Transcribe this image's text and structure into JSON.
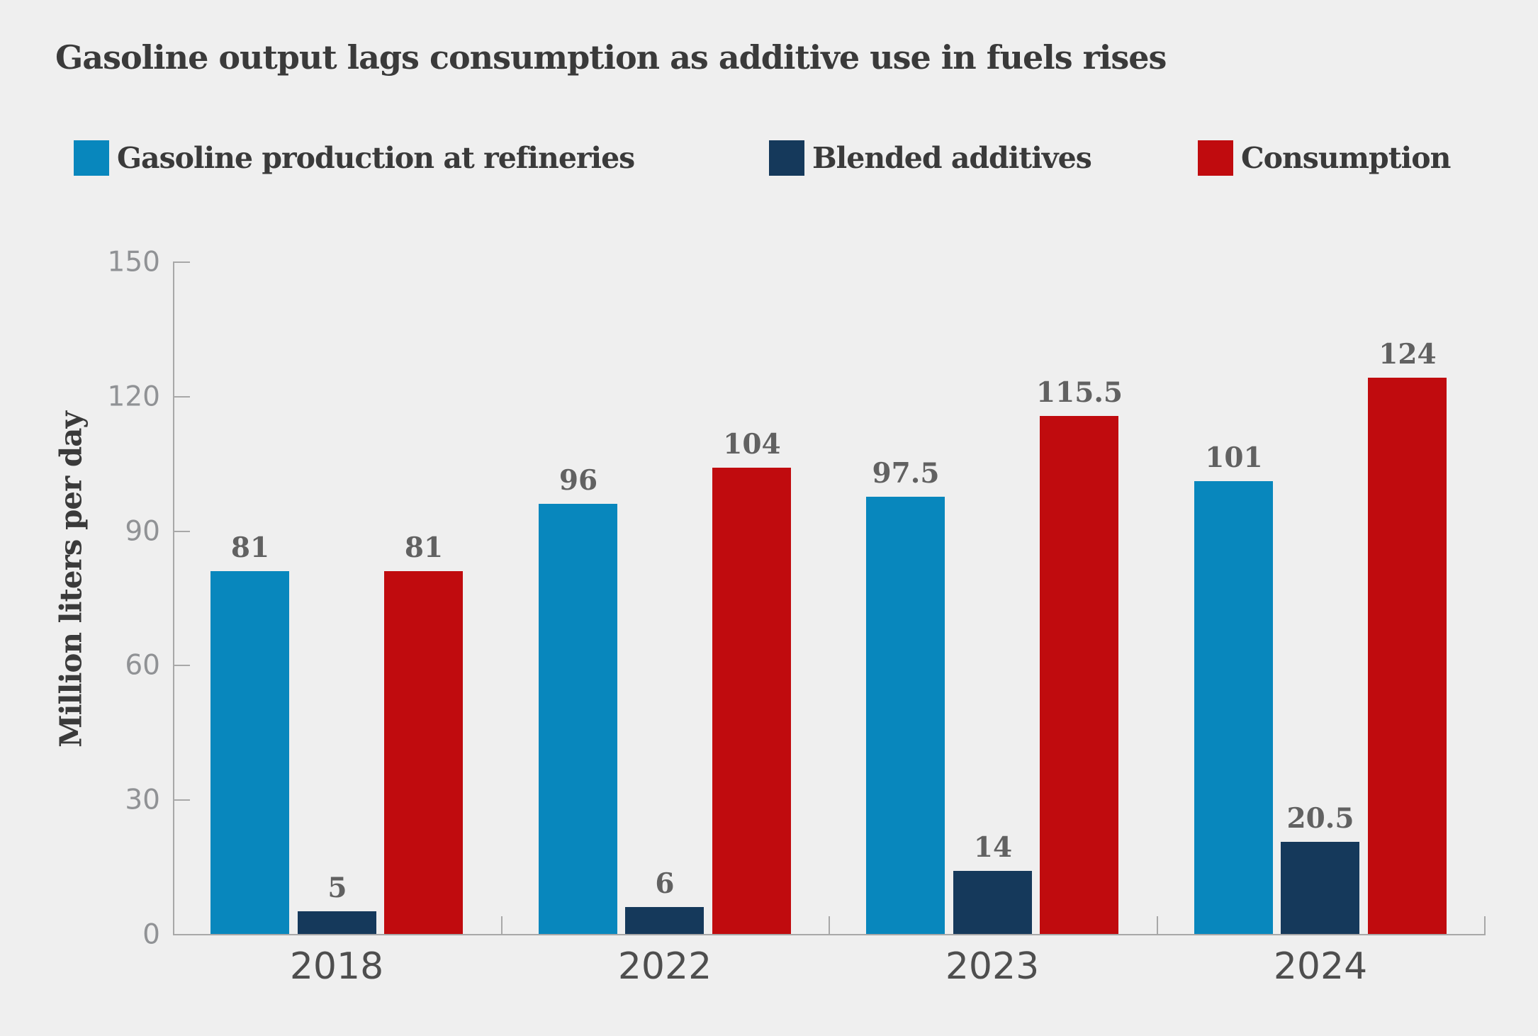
{
  "chart_data": {
    "type": "bar",
    "title": "Gasoline output lags consumption as additive use in fuels rises",
    "ylabel": "Million liters per day",
    "xlabel": "",
    "categories": [
      "2018",
      "2022",
      "2023",
      "2024"
    ],
    "series": [
      {
        "key": "production",
        "name": "Gasoline production at refineries",
        "color": "#0887bd",
        "values": [
          81,
          96,
          97.5,
          101
        ]
      },
      {
        "key": "additives",
        "name": "Blended additives",
        "color": "#15395b",
        "values": [
          5,
          6,
          14,
          20.5
        ]
      },
      {
        "key": "consumption",
        "name": "Consumption",
        "color": "#c00b0e",
        "values": [
          81,
          104,
          115.5,
          124
        ]
      }
    ],
    "ylim": [
      0,
      150
    ],
    "yticks": [
      0,
      30,
      60,
      90,
      120,
      150
    ],
    "grid": false,
    "legend_position": "top",
    "value_labels": true
  },
  "colors": {
    "background": "#efefef",
    "axis": "#a8a8a8",
    "tick_label": "#909295",
    "year_label": "#4e4e4e",
    "value_label": "#616161",
    "text": "#3a3a3a"
  }
}
